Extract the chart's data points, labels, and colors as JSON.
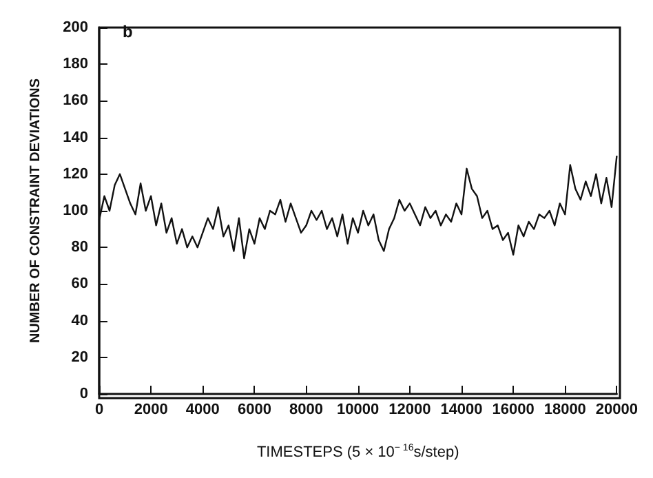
{
  "chart_data": {
    "type": "line",
    "title": "b",
    "xlabel": "TIMESTEPS (5 × 10$^{− 16}$s/step)",
    "ylabel": "NUMBER OF CONSTRAINT DEVIATIONS",
    "x": [
      0,
      200,
      400,
      600,
      800,
      1000,
      1200,
      1400,
      1600,
      1800,
      2000,
      2200,
      2400,
      2600,
      2800,
      3000,
      3200,
      3400,
      3600,
      3800,
      4000,
      4200,
      4400,
      4600,
      4800,
      5000,
      5200,
      5400,
      5600,
      5800,
      6000,
      6200,
      6400,
      6600,
      6800,
      7000,
      7200,
      7400,
      7600,
      7800,
      8000,
      8200,
      8400,
      8600,
      8800,
      9000,
      9200,
      9400,
      9600,
      9800,
      10000,
      10200,
      10400,
      10600,
      10800,
      11000,
      11200,
      11400,
      11600,
      11800,
      12000,
      12200,
      12400,
      12600,
      12800,
      13000,
      13200,
      13400,
      13600,
      13800,
      14000,
      14200,
      14400,
      14600,
      14800,
      15000,
      15200,
      15400,
      15600,
      15800,
      16000,
      16200,
      16400,
      16600,
      16800,
      17000,
      17200,
      17400,
      17600,
      17800,
      18000,
      18200,
      18400,
      18600,
      18800,
      19000,
      19200,
      19400,
      19600,
      19800,
      20000
    ],
    "values": [
      95,
      108,
      100,
      114,
      120,
      112,
      104,
      98,
      115,
      100,
      108,
      92,
      104,
      88,
      96,
      82,
      90,
      80,
      86,
      80,
      88,
      96,
      90,
      102,
      86,
      92,
      78,
      96,
      74,
      90,
      82,
      96,
      90,
      100,
      98,
      106,
      94,
      104,
      96,
      88,
      92,
      100,
      95,
      100,
      90,
      96,
      86,
      98,
      82,
      96,
      88,
      100,
      92,
      98,
      84,
      78,
      90,
      96,
      106,
      100,
      104,
      98,
      92,
      102,
      96,
      100,
      92,
      98,
      94,
      104,
      98,
      123,
      112,
      108,
      96,
      100,
      90,
      92,
      84,
      88,
      76,
      92,
      86,
      94,
      90,
      98,
      96,
      100,
      92,
      104,
      98,
      125,
      112,
      106,
      116,
      108,
      120,
      104,
      118,
      102,
      130
    ],
    "xlim": [
      0,
      20000
    ],
    "xticks": [
      0,
      2000,
      4000,
      6000,
      8000,
      10000,
      12000,
      14000,
      16000,
      18000,
      20000
    ],
    "ylim": [
      0,
      200
    ],
    "yticks": [
      0,
      20,
      40,
      60,
      80,
      100,
      120,
      140,
      160,
      180,
      200
    ],
    "color": "#111111",
    "grid": false,
    "marker": "none",
    "line_style": "solid"
  }
}
